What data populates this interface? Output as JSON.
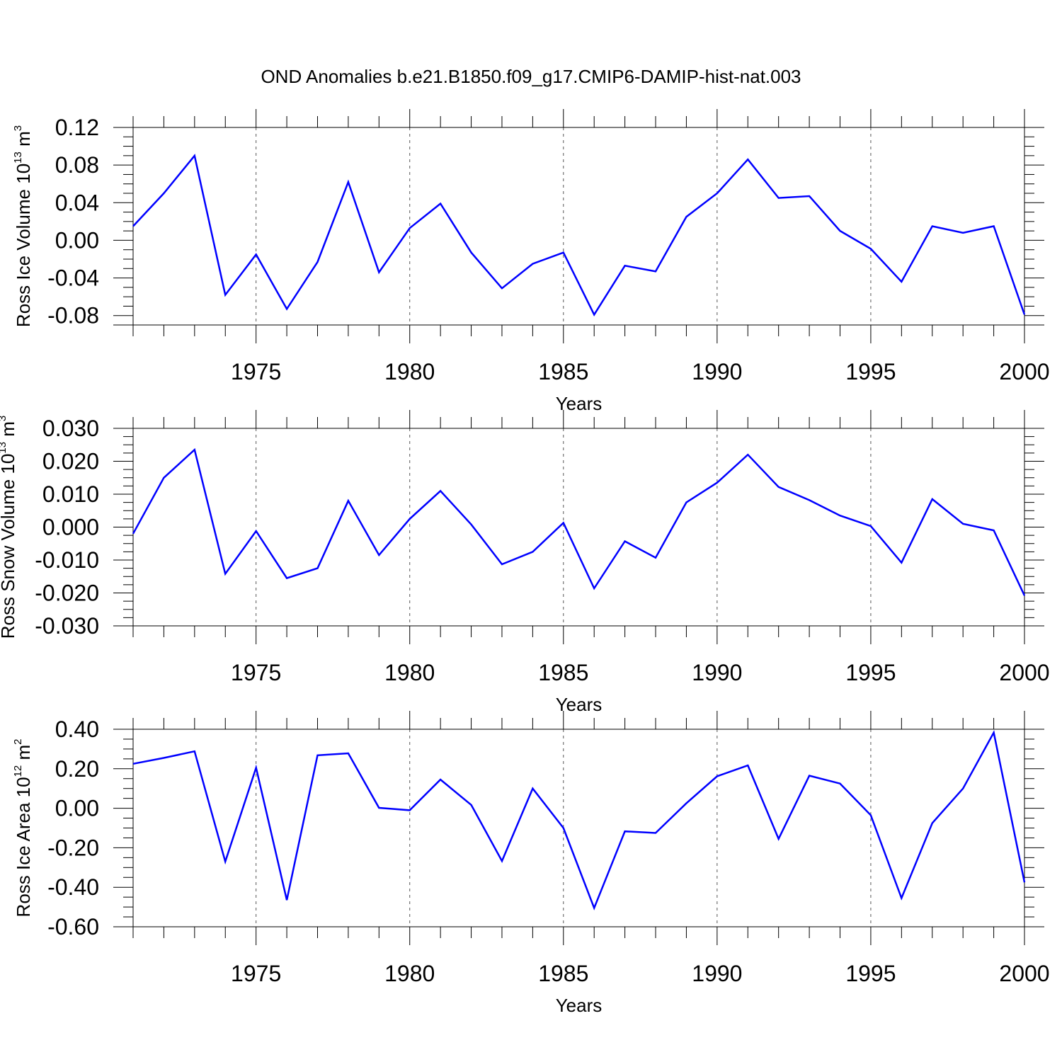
{
  "title": "OND Anomalies b.e21.B1850.f09_g17.CMIP6-DAMIP-hist-nat.003",
  "colors": {
    "line": "#0000ff",
    "axis": "#000000",
    "grid": "#555555"
  },
  "chart_data": [
    {
      "type": "line",
      "ylabel": "Ross Ice Volume 10",
      "ylabel_exp": "13",
      "ylabel_unit": " m",
      "ylabel_unit_exp": "3",
      "xlabel": "Years",
      "xlim": [
        1971,
        2000
      ],
      "ylim": [
        -0.09,
        0.12
      ],
      "yticks": [
        0.12,
        0.08,
        0.04,
        0.0,
        -0.04,
        -0.08
      ],
      "ytick_labels": [
        "0.12",
        "0.08",
        "0.04",
        "0.00",
        "-0.04",
        "-0.08"
      ],
      "xticks": [
        1975,
        1980,
        1985,
        1990,
        1995,
        2000
      ],
      "xtick_labels": [
        "1975",
        "1980",
        "1985",
        "1990",
        "1995",
        "2000"
      ],
      "grid": "vertical dashed at labeled years",
      "x": [
        1971,
        1972,
        1973,
        1974,
        1975,
        1976,
        1977,
        1978,
        1979,
        1980,
        1981,
        1982,
        1983,
        1984,
        1985,
        1986,
        1987,
        1988,
        1989,
        1990,
        1991,
        1992,
        1993,
        1994,
        1995,
        1996,
        1997,
        1998,
        1999,
        2000
      ],
      "values": [
        0.015,
        0.05,
        0.09,
        -0.058,
        -0.015,
        -0.073,
        -0.023,
        0.062,
        -0.034,
        0.013,
        0.039,
        -0.013,
        -0.051,
        -0.025,
        -0.013,
        -0.079,
        -0.027,
        -0.033,
        0.025,
        0.05,
        0.086,
        0.045,
        0.047,
        0.01,
        -0.009,
        -0.044,
        0.015,
        0.008,
        0.015,
        -0.079
      ]
    },
    {
      "type": "line",
      "ylabel": "Ross Snow Volume 10",
      "ylabel_exp": "13",
      "ylabel_unit": " m",
      "ylabel_unit_exp": "3",
      "xlabel": "Years",
      "xlim": [
        1971,
        2000
      ],
      "ylim": [
        -0.03,
        0.03
      ],
      "yticks": [
        0.03,
        0.02,
        0.01,
        0.0,
        -0.01,
        -0.02,
        -0.03
      ],
      "ytick_labels": [
        "0.030",
        "0.020",
        "0.010",
        "0.000",
        "-0.010",
        "-0.020",
        "-0.030"
      ],
      "xticks": [
        1975,
        1980,
        1985,
        1990,
        1995,
        2000
      ],
      "xtick_labels": [
        "1975",
        "1980",
        "1985",
        "1990",
        "1995",
        "2000"
      ],
      "grid": "vertical dashed at labeled years",
      "x": [
        1971,
        1972,
        1973,
        1974,
        1975,
        1976,
        1977,
        1978,
        1979,
        1980,
        1981,
        1982,
        1983,
        1984,
        1985,
        1986,
        1987,
        1988,
        1989,
        1990,
        1991,
        1992,
        1993,
        1994,
        1995,
        1996,
        1997,
        1998,
        1999,
        2000
      ],
      "values": [
        -0.002,
        0.015,
        0.0235,
        -0.0142,
        -0.0012,
        -0.0155,
        -0.0125,
        0.008,
        -0.0085,
        0.0025,
        0.011,
        0.0008,
        -0.0113,
        -0.0075,
        0.0013,
        -0.0186,
        -0.0043,
        -0.0093,
        0.0075,
        0.0135,
        0.022,
        0.0122,
        0.0082,
        0.0035,
        0.0003,
        -0.0108,
        0.0085,
        0.001,
        -0.001,
        -0.0208
      ]
    },
    {
      "type": "line",
      "ylabel": "Ross Ice Area 10",
      "ylabel_exp": "12",
      "ylabel_unit": " m",
      "ylabel_unit_exp": "2",
      "xlabel": "Years",
      "xlim": [
        1971,
        2000
      ],
      "ylim": [
        -0.6,
        0.4
      ],
      "yticks": [
        0.4,
        0.2,
        0.0,
        -0.2,
        -0.4,
        -0.6
      ],
      "ytick_labels": [
        "0.40",
        "0.20",
        "0.00",
        "-0.20",
        "-0.40",
        "-0.60"
      ],
      "xticks": [
        1975,
        1980,
        1985,
        1990,
        1995,
        2000
      ],
      "xtick_labels": [
        "1975",
        "1980",
        "1985",
        "1990",
        "1995",
        "2000"
      ],
      "grid": "vertical dashed at labeled years",
      "x": [
        1971,
        1972,
        1973,
        1974,
        1975,
        1976,
        1977,
        1978,
        1979,
        1980,
        1981,
        1982,
        1983,
        1984,
        1985,
        1986,
        1987,
        1988,
        1989,
        1990,
        1991,
        1992,
        1993,
        1994,
        1995,
        1996,
        1997,
        1998,
        1999,
        2000
      ],
      "values": [
        0.225,
        0.255,
        0.288,
        -0.27,
        0.205,
        -0.465,
        0.268,
        0.278,
        0.002,
        -0.01,
        0.145,
        0.017,
        -0.267,
        0.1,
        -0.1,
        -0.505,
        -0.117,
        -0.125,
        0.025,
        0.162,
        0.217,
        -0.155,
        0.165,
        0.125,
        -0.035,
        -0.455,
        -0.075,
        0.1,
        0.383,
        -0.375
      ]
    }
  ]
}
